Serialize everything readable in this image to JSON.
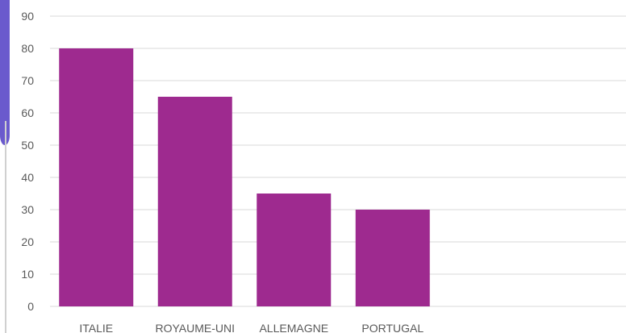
{
  "chart_data": {
    "type": "bar",
    "title": "",
    "xlabel": "",
    "ylabel": "",
    "categories": [
      "ITALIE",
      "ROYAUME-UNI",
      "ALLEMAGNE",
      "PORTUGAL"
    ],
    "values": [
      80,
      65,
      35,
      30
    ],
    "ylim": [
      0,
      90
    ],
    "yticks": [
      0,
      10,
      20,
      30,
      40,
      50,
      60,
      70,
      80,
      90
    ],
    "grid": true,
    "legend": "none"
  },
  "colors": {
    "bar": "#9e2a8f",
    "grid": "#d9d9d9",
    "axis_text": "#595959",
    "left_border": "#d0d0d0",
    "corner_accent": "#6a5acd"
  }
}
